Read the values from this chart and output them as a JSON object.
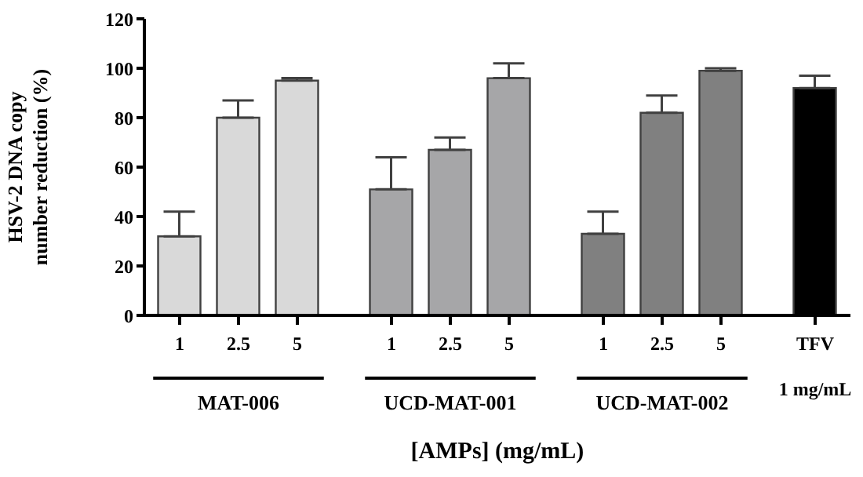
{
  "chart_data": {
    "type": "bar",
    "ylabel": "HSV-2 DNA copy number reduction (%)",
    "xlabel": "[AMPs] (mg/mL)",
    "categories": [
      "1",
      "2.5",
      "5",
      "1",
      "2.5",
      "5",
      "1",
      "2.5",
      "5",
      "TFV"
    ],
    "values": [
      32,
      80,
      95,
      51,
      67,
      96,
      33,
      82,
      99,
      92
    ],
    "errors": [
      [
        32,
        42
      ],
      [
        80,
        87
      ],
      [
        95,
        96
      ],
      [
        51,
        64
      ],
      [
        67,
        72
      ],
      [
        96,
        102
      ],
      [
        33,
        42
      ],
      [
        82,
        89
      ],
      [
        99,
        100
      ],
      [
        92,
        97
      ]
    ],
    "colors": [
      "#d9d9d9",
      "#d9d9d9",
      "#d9d9d9",
      "#a6a6a8",
      "#a6a6a8",
      "#a6a6a8",
      "#808080",
      "#808080",
      "#808080",
      "#000000"
    ],
    "ylim": [
      0,
      120
    ],
    "yticks": [
      0,
      20,
      40,
      60,
      80,
      100,
      120
    ],
    "grid": false,
    "legend": false,
    "annotations": [
      "MAT-006",
      "UCD-MAT-001",
      "UCD-MAT-002",
      "1 mg/mL"
    ]
  }
}
